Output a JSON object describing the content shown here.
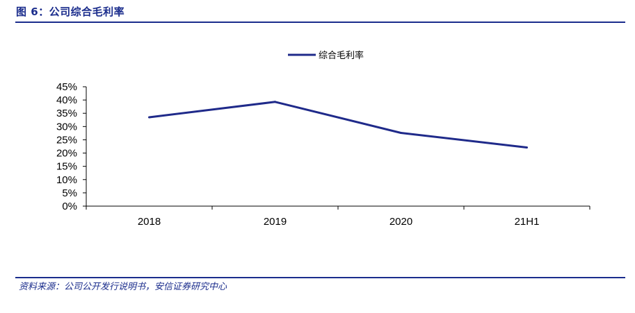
{
  "header": {
    "title": "图 6：公司综合毛利率"
  },
  "footer": {
    "source": "资料来源：公司公开发行说明书，安信证券研究中心"
  },
  "colors": {
    "accent": "#1a2c8c",
    "series": "#1f2a8a"
  },
  "chart_data": {
    "type": "line",
    "title": "",
    "xlabel": "",
    "ylabel": "",
    "categories": [
      "2018",
      "2019",
      "2020",
      "21H1"
    ],
    "series": [
      {
        "name": "综合毛利率",
        "values": [
          33.5,
          39.3,
          27.6,
          22.1
        ]
      }
    ],
    "ylim": [
      0,
      45
    ],
    "yticks": [
      "0%",
      "5%",
      "10%",
      "15%",
      "20%",
      "25%",
      "30%",
      "35%",
      "40%",
      "45%"
    ],
    "grid": false,
    "legend": "top"
  }
}
